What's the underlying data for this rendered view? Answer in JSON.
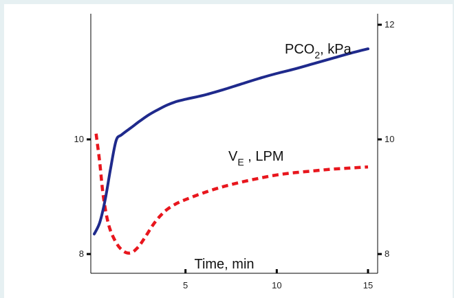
{
  "chart_data": {
    "type": "line",
    "xlabel": "Time, min",
    "xlim": [
      0,
      15.4
    ],
    "x_ticks": [
      5,
      10,
      15
    ],
    "left_axis": {
      "ylim": [
        7.6,
        12.1
      ],
      "ticks": [
        8,
        10
      ]
    },
    "right_axis": {
      "ylim": [
        7.6,
        12.1
      ],
      "ticks": [
        8,
        10,
        12
      ]
    },
    "annotations": {
      "pco2": {
        "main": "PCO",
        "sub": "2",
        "rest": ", kPa"
      },
      "ve": {
        "main": "V",
        "sub": "E",
        "rest": " , LPM"
      }
    },
    "series": [
      {
        "color": "#1f2a8c",
        "style": "solid",
        "axis": "left",
        "x": [
          0,
          0.3,
          0.6,
          0.9,
          1.2,
          1.5,
          2,
          2.5,
          3,
          3.5,
          4,
          4.5,
          5,
          6,
          7,
          8,
          9,
          10,
          11,
          12,
          13,
          14,
          15
        ],
        "y": [
          8.35,
          8.55,
          8.95,
          9.5,
          9.98,
          10.08,
          10.2,
          10.32,
          10.43,
          10.52,
          10.6,
          10.66,
          10.7,
          10.77,
          10.86,
          10.96,
          11.06,
          11.15,
          11.23,
          11.32,
          11.41,
          11.5,
          11.58
        ]
      },
      {
        "color": "#e8161d",
        "style": "dashed",
        "axis": "left",
        "x": [
          0.1,
          0.3,
          0.5,
          0.8,
          1.2,
          1.6,
          2.0,
          2.4,
          2.8,
          3.2,
          3.6,
          4.0,
          4.5,
          5,
          6,
          7,
          8,
          9,
          10,
          11,
          12,
          13,
          14,
          15
        ],
        "y": [
          10.1,
          9.6,
          9.0,
          8.5,
          8.2,
          8.05,
          8.02,
          8.12,
          8.3,
          8.5,
          8.66,
          8.78,
          8.88,
          8.95,
          9.07,
          9.17,
          9.25,
          9.32,
          9.38,
          9.42,
          9.45,
          9.48,
          9.5,
          9.52
        ]
      }
    ]
  }
}
